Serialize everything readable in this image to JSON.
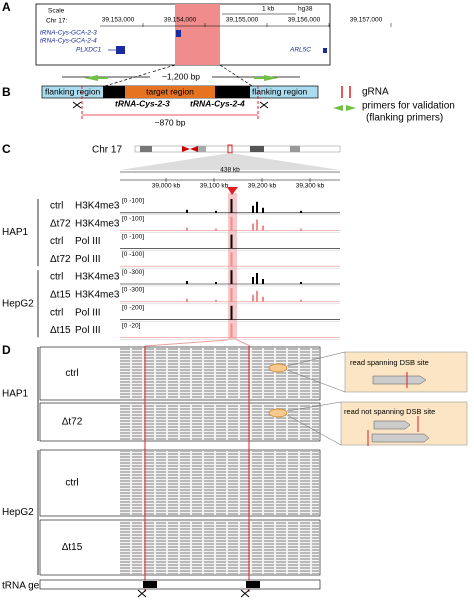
{
  "panel_a": {
    "label": "A",
    "scale": "Scale",
    "scale_bar": "1 kb",
    "assembly": "hg38",
    "chrom": "Chr 17:",
    "coords": [
      "39,153,000",
      "39,154,000",
      "39,155,000",
      "39,156,000",
      "39,157,000"
    ],
    "genes": [
      "tRNA-Cys-GCA-2-3",
      "tRNA-Cys-GCA-2-4",
      "PLXDC1",
      "ARL5C"
    ]
  },
  "panel_b": {
    "label": "B",
    "span_outer": "~1,200 bp",
    "flank_left": "flanking region",
    "target": "target region",
    "flank_right": "flanking region",
    "gene_1": "tRNA-Cys-2-3",
    "gene_2": "tRNA-Cys-2-4",
    "span_inner": "~870 bp",
    "legend": {
      "grna": "gRNA",
      "primers_line1": "primers for validation",
      "primers_line2": "(flanking primers)"
    }
  },
  "panel_c": {
    "label": "C",
    "chrom": "Chr 17",
    "width": "438 kb",
    "axis": [
      "39,000 kb",
      "39,100 kb",
      "39,200 kb",
      "39,300 kb"
    ],
    "groups": [
      {
        "name": "HAP1",
        "tracks": [
          {
            "sample": "ctrl",
            "mark": "H3K4me3",
            "range": "[0 -100]"
          },
          {
            "sample": "Δt72",
            "mark": "H3K4me3",
            "range": "[0 -100]"
          },
          {
            "sample": "ctrl",
            "mark": "Pol III",
            "range": "[0 -100]"
          },
          {
            "sample": "Δt72",
            "mark": "Pol III",
            "range": "[0 -100]"
          }
        ]
      },
      {
        "name": "HepG2",
        "tracks": [
          {
            "sample": "ctrl",
            "mark": "H3K4me3",
            "range": "[0 -300]"
          },
          {
            "sample": "Δt15",
            "mark": "H3K4me3",
            "range": "[0 -300]"
          },
          {
            "sample": "ctrl",
            "mark": "Pol III",
            "range": "[0 -200]"
          },
          {
            "sample": "Δt15",
            "mark": "Pol III",
            "range": "[0 -20]"
          }
        ]
      }
    ]
  },
  "panel_d": {
    "label": "D",
    "groups": [
      {
        "name": "HAP1",
        "samples": [
          "ctrl",
          "Δt72"
        ]
      },
      {
        "name": "HepG2",
        "samples": [
          "ctrl",
          "Δt15"
        ]
      }
    ],
    "callout_1": "read spanning DSB site",
    "callout_2": "read not spanning DSB site",
    "footer": "tRNA gene"
  }
}
